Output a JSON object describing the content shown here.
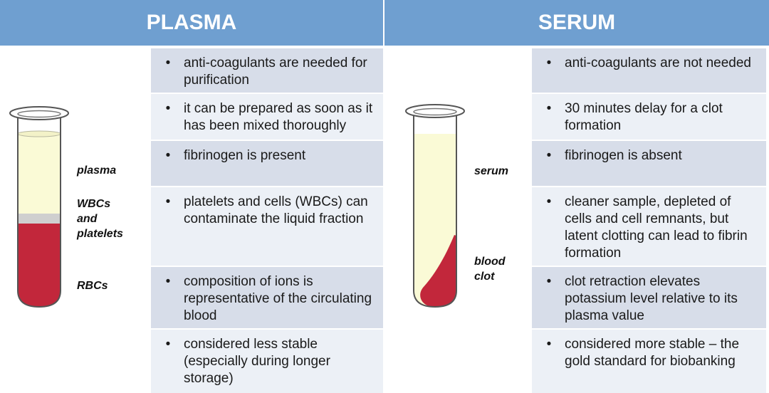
{
  "plasma": {
    "title": "PLASMA",
    "labels": {
      "plasma": "plasma",
      "wbcs": "WBCs",
      "and": "and",
      "platelets": "platelets",
      "rbcs": "RBCs"
    },
    "rows": [
      "anti-coagulants are needed for purification",
      "it can be prepared as soon as it has been mixed thoroughly",
      "fibrinogen is present",
      "platelets and cells (WBCs) can contaminate the liquid fraction",
      "composition of ions is representative of the circulating blood",
      "considered less stable (especially during longer storage)"
    ]
  },
  "serum": {
    "title": "SERUM",
    "labels": {
      "serum": "serum",
      "blood": "blood",
      "clot": "clot"
    },
    "rows": [
      "anti-coagulants are not needed",
      "30 minutes delay for a clot formation",
      "fibrinogen is absent",
      "cleaner sample, depleted of cells and cell remnants, but latent clotting can lead to fibrin formation",
      "clot retraction elevates potassium level relative to its plasma value",
      "considered more stable – the gold standard for biobanking"
    ]
  },
  "bullet": "•",
  "colors": {
    "header": "#6f9fd0",
    "row_dark": "#d7dde9",
    "row_light": "#ecf0f6",
    "plasma_fluid": "#fafad6",
    "buffy_coat": "#cfcfcf",
    "rbc": "#c2273b",
    "tube_outline": "#555555"
  }
}
